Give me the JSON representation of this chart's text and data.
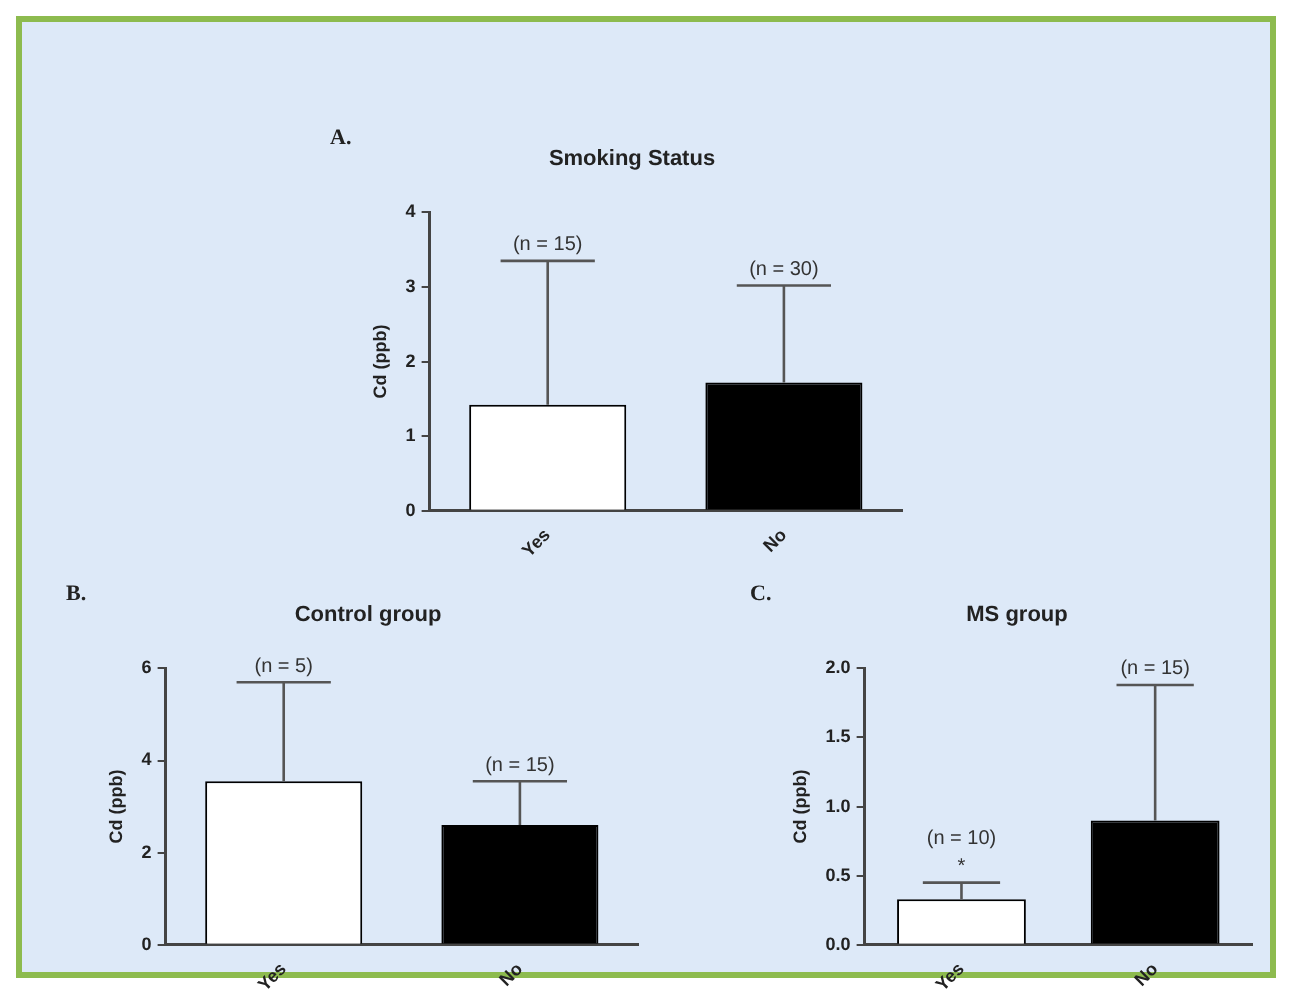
{
  "chart_data": [
    {
      "type": "bar",
      "title": "Smoking Status",
      "ylabel": "Cd (ppb)",
      "categories": [
        "Yes",
        "No"
      ],
      "values": [
        1.42,
        1.72
      ],
      "colors": [
        "#ffffff",
        "#000000"
      ],
      "errors": [
        [
          1.42,
          3.35
        ],
        [
          1.72,
          3.02
        ]
      ],
      "ylim": [
        0,
        4
      ],
      "yticks": [
        0,
        1,
        2,
        3,
        4
      ],
      "grid": false,
      "legend": false,
      "annotations": [
        "A.",
        {
          "text": "(n = 15)",
          "x": "Yes",
          "y": 3.35
        },
        {
          "text": "(n = 30)",
          "x": "No",
          "y": 3.02
        }
      ]
    },
    {
      "type": "bar",
      "title": "Control group",
      "ylabel": "Cd (ppb)",
      "categories": [
        "Yes",
        "No"
      ],
      "values": [
        3.55,
        2.6
      ],
      "colors": [
        "#ffffff",
        "#000000"
      ],
      "errors": [
        [
          3.55,
          5.7
        ],
        [
          2.6,
          3.55
        ]
      ],
      "ylim": [
        0,
        6
      ],
      "yticks": [
        0,
        2,
        4,
        6
      ],
      "grid": false,
      "legend": false,
      "annotations": [
        "B.",
        {
          "text": "(n = 5)",
          "x": "Yes",
          "y": 5.7
        },
        {
          "text": "(n = 15)",
          "x": "No",
          "y": 3.55
        }
      ]
    },
    {
      "type": "bar",
      "title": "MS group",
      "ylabel": "Cd (ppb)",
      "categories": [
        "Yes",
        "No"
      ],
      "values": [
        0.33,
        0.9
      ],
      "colors": [
        "#ffffff",
        "#000000"
      ],
      "errors": [
        [
          0.33,
          0.45
        ],
        [
          0.9,
          1.88
        ]
      ],
      "ylim": [
        0,
        2
      ],
      "yticks": [
        {
          "value": 0,
          "label": "0.0"
        },
        {
          "value": 0.5,
          "label": "0.5"
        },
        {
          "value": 1,
          "label": "1.0"
        },
        {
          "value": 1.5,
          "label": "1.5"
        },
        {
          "value": 2,
          "label": "2.0"
        }
      ],
      "grid": false,
      "legend": false,
      "annotations": [
        "C.",
        {
          "text": "*",
          "x": "Yes",
          "y": 0.45
        },
        {
          "text": "(n = 10)",
          "x": "Yes",
          "y": 0.45
        },
        {
          "text": "(n = 15)",
          "x": "No",
          "y": 1.88
        }
      ]
    }
  ]
}
